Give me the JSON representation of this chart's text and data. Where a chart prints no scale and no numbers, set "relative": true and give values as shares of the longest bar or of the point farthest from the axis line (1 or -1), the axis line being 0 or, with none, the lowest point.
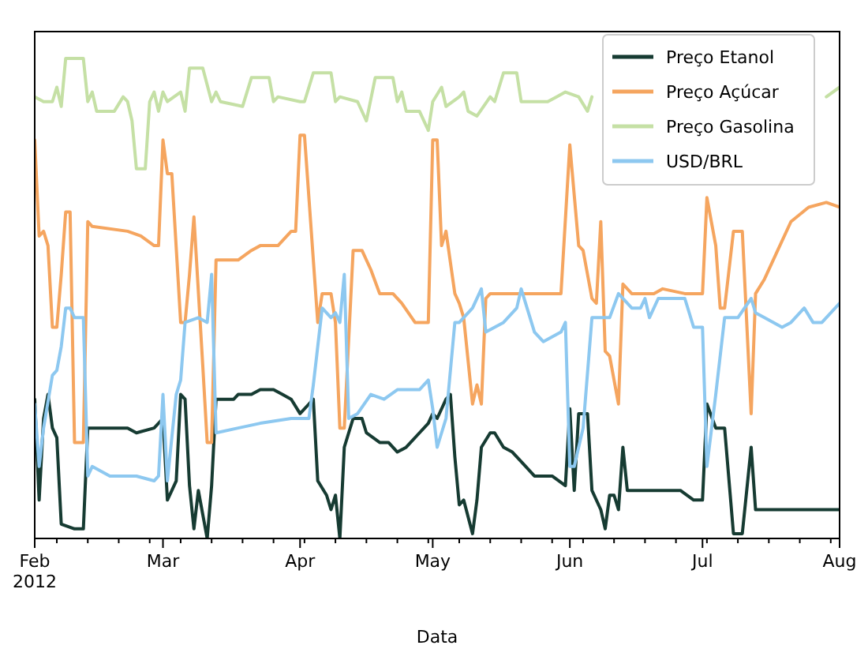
{
  "chart_data": {
    "type": "line",
    "relative": true,
    "xlabel": "Data",
    "legend": "top right",
    "xlim": [
      "2012-02-01",
      "2012-08-01"
    ],
    "xticks": [
      {
        "value": "2012-02-01",
        "label": "Feb\n2012"
      },
      {
        "value": "2012-02-06",
        "label": null
      },
      {
        "value": "2012-02-13",
        "label": null
      },
      {
        "value": "2012-02-20",
        "label": null
      },
      {
        "value": "2012-02-27",
        "label": null
      },
      {
        "value": "2012-03-01",
        "label": "Mar"
      },
      {
        "value": "2012-03-05",
        "label": null
      },
      {
        "value": "2012-03-12",
        "label": null
      },
      {
        "value": "2012-03-19",
        "label": null
      },
      {
        "value": "2012-03-26",
        "label": null
      },
      {
        "value": "2012-04-01",
        "label": "Apr"
      },
      {
        "value": "2012-04-02",
        "label": null
      },
      {
        "value": "2012-04-09",
        "label": null
      },
      {
        "value": "2012-04-16",
        "label": null
      },
      {
        "value": "2012-04-23",
        "label": null
      },
      {
        "value": "2012-04-30",
        "label": null
      },
      {
        "value": "2012-05-01",
        "label": "May"
      },
      {
        "value": "2012-05-07",
        "label": null
      },
      {
        "value": "2012-05-14",
        "label": null
      },
      {
        "value": "2012-05-21",
        "label": null
      },
      {
        "value": "2012-05-28",
        "label": null
      },
      {
        "value": "2012-06-01",
        "label": "Jun"
      },
      {
        "value": "2012-06-04",
        "label": null
      },
      {
        "value": "2012-06-11",
        "label": null
      },
      {
        "value": "2012-06-18",
        "label": null
      },
      {
        "value": "2012-06-25",
        "label": null
      },
      {
        "value": "2012-07-01",
        "label": "Jul"
      },
      {
        "value": "2012-07-02",
        "label": null
      },
      {
        "value": "2012-07-09",
        "label": null
      },
      {
        "value": "2012-07-16",
        "label": null
      },
      {
        "value": "2012-07-23",
        "label": null
      },
      {
        "value": "2012-07-30",
        "label": null
      },
      {
        "value": "2012-08-01",
        "label": "Aug"
      }
    ],
    "series": [
      {
        "name": "Preço Etanol",
        "color": "#163b32",
        "x": [
          "2012-02-01",
          "2012-02-02",
          "2012-02-03",
          "2012-02-04",
          "2012-02-05",
          "2012-02-06",
          "2012-02-07",
          "2012-02-10",
          "2012-02-12",
          "2012-02-13",
          "2012-02-15",
          "2012-02-22",
          "2012-02-24",
          "2012-02-28",
          "2012-03-01",
          "2012-03-02",
          "2012-03-04",
          "2012-03-05",
          "2012-03-06",
          "2012-03-07",
          "2012-03-08",
          "2012-03-09",
          "2012-03-11",
          "2012-03-12",
          "2012-03-13",
          "2012-03-17",
          "2012-03-18",
          "2012-03-21",
          "2012-03-23",
          "2012-03-26",
          "2012-03-28",
          "2012-03-30",
          "2012-04-01",
          "2012-04-03",
          "2012-04-04",
          "2012-04-05",
          "2012-04-07",
          "2012-04-08",
          "2012-04-09",
          "2012-04-10",
          "2012-04-11",
          "2012-04-13",
          "2012-04-15",
          "2012-04-16",
          "2012-04-19",
          "2012-04-21",
          "2012-04-23",
          "2012-04-25",
          "2012-04-28",
          "2012-04-30",
          "2012-05-01",
          "2012-05-02",
          "2012-05-04",
          "2012-05-05",
          "2012-05-06",
          "2012-05-07",
          "2012-05-08",
          "2012-05-10",
          "2012-05-11",
          "2012-05-12",
          "2012-05-14",
          "2012-05-15",
          "2012-05-17",
          "2012-05-19",
          "2012-05-21",
          "2012-05-24",
          "2012-05-28",
          "2012-05-31",
          "2012-06-01",
          "2012-06-02",
          "2012-06-03",
          "2012-06-05",
          "2012-06-06",
          "2012-06-08",
          "2012-06-09",
          "2012-06-10",
          "2012-06-11",
          "2012-06-12",
          "2012-06-13",
          "2012-06-14",
          "2012-06-18",
          "2012-06-26",
          "2012-06-29",
          "2012-07-01",
          "2012-07-02",
          "2012-07-04",
          "2012-07-06",
          "2012-07-08",
          "2012-07-10",
          "2012-07-12",
          "2012-07-13",
          "2012-07-18",
          "2012-07-25",
          "2012-08-01"
        ],
        "values": [
          0.29,
          0.08,
          0.25,
          0.3,
          0.23,
          0.21,
          0.03,
          0.02,
          0.02,
          0.23,
          0.23,
          0.23,
          0.22,
          0.23,
          0.25,
          0.08,
          0.12,
          0.3,
          0.29,
          0.11,
          0.02,
          0.1,
          0,
          0.11,
          0.29,
          0.29,
          0.3,
          0.3,
          0.31,
          0.31,
          0.3,
          0.29,
          0.26,
          0.28,
          0.29,
          0.12,
          0.09,
          0.06,
          0.09,
          0,
          0.19,
          0.25,
          0.25,
          0.22,
          0.2,
          0.2,
          0.18,
          0.19,
          0.22,
          0.24,
          0.26,
          0.25,
          0.29,
          0.3,
          0.17,
          0.07,
          0.08,
          0.01,
          0.08,
          0.19,
          0.22,
          0.22,
          0.19,
          0.18,
          0.16,
          0.13,
          0.13,
          0.11,
          0.27,
          0.1,
          0.26,
          0.26,
          0.1,
          0.06,
          0.02,
          0.09,
          0.09,
          0.06,
          0.19,
          0.1,
          0.1,
          0.1,
          0.08,
          0.08,
          0.28,
          0.23,
          0.23,
          0.01,
          0.01,
          0.19,
          0.06,
          0.06,
          0.06,
          0.06
        ]
      },
      {
        "name": "Preço Açúcar",
        "color": "#f5a55f",
        "x": [
          "2012-02-01",
          "2012-02-02",
          "2012-02-03",
          "2012-02-04",
          "2012-02-05",
          "2012-02-06",
          "2012-02-07",
          "2012-02-08",
          "2012-02-09",
          "2012-02-10",
          "2012-02-12",
          "2012-02-13",
          "2012-02-14",
          "2012-02-22",
          "2012-02-25",
          "2012-02-28",
          "2012-02-29",
          "2012-03-01",
          "2012-03-02",
          "2012-03-03",
          "2012-03-05",
          "2012-03-06",
          "2012-03-07",
          "2012-03-08",
          "2012-03-10",
          "2012-03-11",
          "2012-03-12",
          "2012-03-13",
          "2012-03-18",
          "2012-03-21",
          "2012-03-23",
          "2012-03-27",
          "2012-03-30",
          "2012-03-31",
          "2012-04-01",
          "2012-04-02",
          "2012-04-05",
          "2012-04-06",
          "2012-04-08",
          "2012-04-09",
          "2012-04-10",
          "2012-04-11",
          "2012-04-13",
          "2012-04-15",
          "2012-04-17",
          "2012-04-19",
          "2012-04-22",
          "2012-04-24",
          "2012-04-27",
          "2012-04-30",
          "2012-05-01",
          "2012-05-02",
          "2012-05-03",
          "2012-05-04",
          "2012-05-06",
          "2012-05-07",
          "2012-05-08",
          "2012-05-10",
          "2012-05-11",
          "2012-05-12",
          "2012-05-13",
          "2012-05-14",
          "2012-05-22",
          "2012-05-30",
          "2012-06-01",
          "2012-06-03",
          "2012-06-04",
          "2012-06-06",
          "2012-06-07",
          "2012-06-08",
          "2012-06-09",
          "2012-06-10",
          "2012-06-12",
          "2012-06-13",
          "2012-06-15",
          "2012-06-20",
          "2012-06-22",
          "2012-06-27",
          "2012-07-01",
          "2012-07-02",
          "2012-07-04",
          "2012-07-05",
          "2012-07-06",
          "2012-07-08",
          "2012-07-10",
          "2012-07-12",
          "2012-07-13",
          "2012-07-15",
          "2012-07-18",
          "2012-07-21",
          "2012-07-25",
          "2012-07-29",
          "2012-08-01"
        ],
        "values": [
          0.83,
          0.63,
          0.64,
          0.61,
          0.44,
          0.44,
          0.55,
          0.68,
          0.68,
          0.2,
          0.2,
          0.66,
          0.65,
          0.64,
          0.63,
          0.61,
          0.61,
          0.83,
          0.76,
          0.76,
          0.45,
          0.45,
          0.55,
          0.67,
          0.36,
          0.2,
          0.2,
          0.58,
          0.58,
          0.6,
          0.61,
          0.61,
          0.64,
          0.64,
          0.84,
          0.84,
          0.45,
          0.51,
          0.51,
          0.45,
          0.23,
          0.23,
          0.6,
          0.6,
          0.56,
          0.51,
          0.51,
          0.49,
          0.45,
          0.45,
          0.83,
          0.83,
          0.61,
          0.64,
          0.51,
          0.49,
          0.46,
          0.28,
          0.32,
          0.28,
          0.5,
          0.51,
          0.51,
          0.51,
          0.82,
          0.61,
          0.6,
          0.5,
          0.49,
          0.66,
          0.39,
          0.38,
          0.28,
          0.53,
          0.51,
          0.51,
          0.52,
          0.51,
          0.51,
          0.71,
          0.61,
          0.48,
          0.48,
          0.64,
          0.64,
          0.26,
          0.51,
          0.54,
          0.6,
          0.66,
          0.69,
          0.7,
          0.69
        ]
      },
      {
        "name": "Preço Gasolina",
        "color": "#c5e0a5",
        "x": [
          "2012-02-01",
          "2012-02-03",
          "2012-02-05",
          "2012-02-06",
          "2012-02-07",
          "2012-02-08",
          "2012-02-12",
          "2012-02-13",
          "2012-02-14",
          "2012-02-15",
          "2012-02-19",
          "2012-02-21",
          "2012-02-22",
          "2012-02-23",
          "2012-02-24",
          "2012-02-26",
          "2012-02-27",
          "2012-02-28",
          "2012-02-29",
          "2012-03-01",
          "2012-03-02",
          "2012-03-05",
          "2012-03-06",
          "2012-03-07",
          "2012-03-10",
          "2012-03-12",
          "2012-03-13",
          "2012-03-14",
          "2012-03-19",
          "2012-03-21",
          "2012-03-25",
          "2012-03-26",
          "2012-03-27",
          "2012-04-01",
          "2012-04-02",
          "2012-04-04",
          "2012-04-08",
          "2012-04-09",
          "2012-04-10",
          "2012-04-14",
          "2012-04-16",
          "2012-04-18",
          "2012-04-22",
          "2012-04-23",
          "2012-04-24",
          "2012-04-25",
          "2012-04-28",
          "2012-04-30",
          "2012-05-01",
          "2012-05-03",
          "2012-05-04",
          "2012-05-07",
          "2012-05-08",
          "2012-05-09",
          "2012-05-11",
          "2012-05-14",
          "2012-05-15",
          "2012-05-17",
          "2012-05-20",
          "2012-05-21",
          "2012-05-27",
          "2012-05-29",
          "2012-05-31",
          "2012-06-03",
          "2012-06-05",
          "2012-06-06",
          "2012-06-07",
          "2012-07-29",
          "2012-08-01"
        ],
        "values": [
          0.92,
          0.91,
          0.91,
          0.94,
          0.9,
          1,
          1,
          0.91,
          0.93,
          0.89,
          0.89,
          0.92,
          0.91,
          0.87,
          0.77,
          0.77,
          0.91,
          0.93,
          0.89,
          0.93,
          0.91,
          0.93,
          0.89,
          0.98,
          0.98,
          0.91,
          0.93,
          0.91,
          0.9,
          0.96,
          0.96,
          0.91,
          0.92,
          0.91,
          0.91,
          0.97,
          0.97,
          0.91,
          0.92,
          0.91,
          0.87,
          0.96,
          0.96,
          0.91,
          0.93,
          0.89,
          0.89,
          0.85,
          0.91,
          0.94,
          0.9,
          0.92,
          0.93,
          0.89,
          0.88,
          0.92,
          0.91,
          0.97,
          0.97,
          0.91,
          0.91,
          0.92,
          0.93,
          0.92,
          0.89,
          0.92,
          null,
          0.92,
          0.94
        ]
      },
      {
        "name": "USD/BRL",
        "color": "#8dc8f0",
        "x": [
          "2012-02-01",
          "2012-02-02",
          "2012-02-03",
          "2012-02-05",
          "2012-02-06",
          "2012-02-07",
          "2012-02-08",
          "2012-02-09",
          "2012-02-10",
          "2012-02-12",
          "2012-02-13",
          "2012-02-14",
          "2012-02-18",
          "2012-02-24",
          "2012-02-28",
          "2012-02-29",
          "2012-03-01",
          "2012-03-02",
          "2012-03-04",
          "2012-03-05",
          "2012-03-06",
          "2012-03-09",
          "2012-03-11",
          "2012-03-12",
          "2012-03-13",
          "2012-03-18",
          "2012-03-23",
          "2012-03-30",
          "2012-04-03",
          "2012-04-04",
          "2012-04-06",
          "2012-04-08",
          "2012-04-09",
          "2012-04-10",
          "2012-04-11",
          "2012-04-12",
          "2012-04-14",
          "2012-04-17",
          "2012-04-20",
          "2012-04-23",
          "2012-04-28",
          "2012-04-30",
          "2012-05-01",
          "2012-05-02",
          "2012-05-04",
          "2012-05-06",
          "2012-05-07",
          "2012-05-10",
          "2012-05-12",
          "2012-05-13",
          "2012-05-17",
          "2012-05-20",
          "2012-05-21",
          "2012-05-24",
          "2012-05-26",
          "2012-05-30",
          "2012-05-31",
          "2012-06-01",
          "2012-06-02",
          "2012-06-04",
          "2012-06-06",
          "2012-06-10",
          "2012-06-12",
          "2012-06-15",
          "2012-06-17",
          "2012-06-18",
          "2012-06-19",
          "2012-06-21",
          "2012-06-27",
          "2012-06-29",
          "2012-07-01",
          "2012-07-02",
          "2012-07-04",
          "2012-07-06",
          "2012-07-09",
          "2012-07-12",
          "2012-07-13",
          "2012-07-15",
          "2012-07-19",
          "2012-07-21",
          "2012-07-24",
          "2012-07-26",
          "2012-07-28",
          "2012-08-01"
        ],
        "values": [
          0.28,
          0.15,
          0.23,
          0.34,
          0.35,
          0.4,
          0.48,
          0.48,
          0.46,
          0.46,
          0.13,
          0.15,
          0.13,
          0.13,
          0.12,
          0.13,
          0.3,
          0.12,
          0.3,
          0.33,
          0.45,
          0.46,
          0.45,
          0.55,
          0.22,
          0.23,
          0.24,
          0.25,
          0.25,
          0.32,
          0.48,
          0.46,
          0.47,
          0.45,
          0.55,
          0.25,
          0.26,
          0.3,
          0.29,
          0.31,
          0.31,
          0.33,
          0.27,
          0.19,
          0.25,
          0.45,
          0.45,
          0.48,
          0.52,
          0.43,
          0.45,
          0.48,
          0.52,
          0.43,
          0.41,
          0.43,
          0.45,
          0.15,
          0.15,
          0.23,
          0.46,
          0.46,
          0.51,
          0.48,
          0.48,
          0.5,
          0.46,
          0.5,
          0.5,
          0.44,
          0.44,
          0.15,
          0.3,
          0.46,
          0.46,
          0.5,
          0.47,
          0.46,
          0.44,
          0.45,
          0.48,
          0.45,
          0.45,
          0.49
        ]
      }
    ]
  }
}
